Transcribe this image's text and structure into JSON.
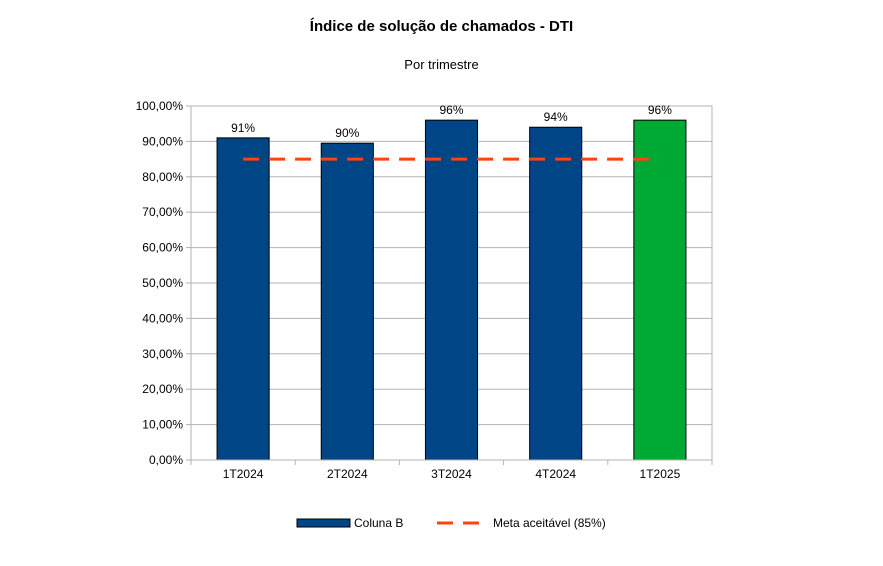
{
  "chart_data": {
    "type": "bar",
    "title": "Índice de solução de chamados - DTI",
    "subtitle": "Por trimestre",
    "categories": [
      "1T2024",
      "2T2024",
      "3T2024",
      "4T2024",
      "1T2025"
    ],
    "series": [
      {
        "name": "Coluna B",
        "values": [
          0.91,
          0.895,
          0.96,
          0.94,
          0.96
        ],
        "data_labels": [
          "91%",
          "90%",
          "96%",
          "94%",
          "96%"
        ],
        "colors": [
          "#004586",
          "#004586",
          "#004586",
          "#004586",
          "#00a933"
        ]
      },
      {
        "name": "Meta aceitável (85%)",
        "type": "line",
        "style": "dashed",
        "color": "#ff420e",
        "values": [
          0.85,
          0.85,
          0.85,
          0.85,
          0.85
        ]
      }
    ],
    "ylim": [
      0,
      1
    ],
    "yticks": [
      "0,00%",
      "10,00%",
      "20,00%",
      "30,00%",
      "40,00%",
      "50,00%",
      "60,00%",
      "70,00%",
      "80,00%",
      "90,00%",
      "100,00%"
    ],
    "grid": true,
    "legend": "bottom",
    "xlabel": "",
    "ylabel": ""
  }
}
